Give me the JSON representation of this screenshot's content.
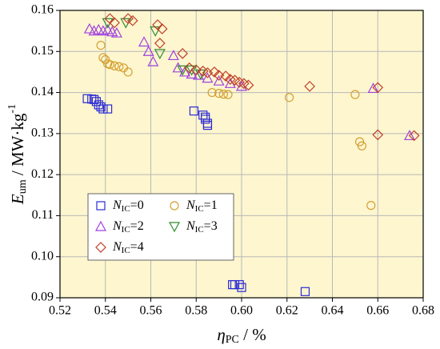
{
  "chart_data": {
    "type": "scatter",
    "xlabel": {
      "symbol": "η",
      "sub": "PC",
      "unit": " / %"
    },
    "ylabel": {
      "symbol": "E",
      "sub": "um",
      "unit": " / MW·kg",
      "sup": "-1"
    },
    "xlim": [
      0.52,
      0.68
    ],
    "ylim": [
      0.09,
      0.16
    ],
    "xticks": [
      0.52,
      0.54,
      0.56,
      0.58,
      {
        "value": 0.6,
        "label": "0.60"
      },
      0.62,
      0.64,
      0.66,
      0.68
    ],
    "yticks": [
      0.09,
      {
        "value": 0.1,
        "label": "0.10"
      },
      0.11,
      0.12,
      0.13,
      0.14,
      0.15,
      0.16
    ],
    "grid": true,
    "legend": "lower left",
    "series": [
      {
        "name": {
          "symbol": "N",
          "sub": "IC",
          "rest": "=0"
        },
        "marker": "square",
        "color": "#2b2bd6",
        "x": [
          0.532,
          0.534,
          0.535,
          0.536,
          0.537,
          0.538,
          0.539,
          0.541,
          0.579,
          0.583,
          0.584,
          0.584,
          0.585,
          0.585,
          0.596,
          0.597,
          0.599,
          0.6,
          0.628
        ],
        "values": [
          0.1385,
          0.1384,
          0.1383,
          0.1378,
          0.137,
          0.1365,
          0.136,
          0.136,
          0.1355,
          0.1345,
          0.134,
          0.1335,
          0.1325,
          0.132,
          0.0932,
          0.0932,
          0.0932,
          0.0925,
          0.0915
        ]
      },
      {
        "name": {
          "symbol": "N",
          "sub": "IC",
          "rest": "=1"
        },
        "marker": "circle",
        "color": "#d4a030",
        "x": [
          0.538,
          0.539,
          0.54,
          0.541,
          0.542,
          0.544,
          0.546,
          0.548,
          0.55,
          0.587,
          0.59,
          0.592,
          0.594,
          0.621,
          0.65,
          0.652,
          0.653,
          0.657
        ],
        "values": [
          0.1515,
          0.1485,
          0.148,
          0.147,
          0.1468,
          0.1465,
          0.1463,
          0.146,
          0.145,
          0.14,
          0.1398,
          0.1396,
          0.1395,
          0.1388,
          0.1395,
          0.128,
          0.127,
          0.1125
        ]
      },
      {
        "name": {
          "symbol": "N",
          "sub": "IC",
          "rest": "=2"
        },
        "marker": "triangle",
        "color": "#a040e0",
        "x": [
          0.533,
          0.535,
          0.537,
          0.539,
          0.541,
          0.543,
          0.545,
          0.557,
          0.559,
          0.561,
          0.57,
          0.572,
          0.575,
          0.578,
          0.581,
          0.585,
          0.59,
          0.595,
          0.6,
          0.658,
          0.674
        ],
        "values": [
          0.1555,
          0.155,
          0.1553,
          0.155,
          0.1553,
          0.1548,
          0.1545,
          0.1523,
          0.15,
          0.1475,
          0.149,
          0.146,
          0.145,
          0.1445,
          0.1442,
          0.1435,
          0.1428,
          0.1422,
          0.1415,
          0.141,
          0.1295
        ]
      },
      {
        "name": {
          "symbol": "N",
          "sub": "IC",
          "rest": "=3"
        },
        "marker": "triangle-down",
        "color": "#2e8b2e",
        "x": [
          0.541,
          0.549,
          0.562,
          0.564,
          0.574,
          0.578,
          0.582
        ],
        "values": [
          0.157,
          0.157,
          0.155,
          0.1495,
          0.1455,
          0.1455,
          0.1445
        ]
      },
      {
        "name": {
          "symbol": "N",
          "sub": "IC",
          "rest": "=4"
        },
        "marker": "diamond",
        "color": "#c0402a",
        "x": [
          0.542,
          0.544,
          0.55,
          0.552,
          0.563,
          0.565,
          0.564,
          0.574,
          0.577,
          0.58,
          0.583,
          0.585,
          0.588,
          0.59,
          0.593,
          0.595,
          0.597,
          0.599,
          0.601,
          0.603,
          0.63,
          0.66,
          0.66,
          0.676
        ],
        "values": [
          0.158,
          0.157,
          0.158,
          0.1575,
          0.1565,
          0.1555,
          0.152,
          0.1495,
          0.146,
          0.1455,
          0.1452,
          0.1448,
          0.145,
          0.1442,
          0.144,
          0.1432,
          0.143,
          0.1425,
          0.1422,
          0.1418,
          0.1415,
          0.1412,
          0.1297,
          0.1295
        ]
      }
    ]
  }
}
